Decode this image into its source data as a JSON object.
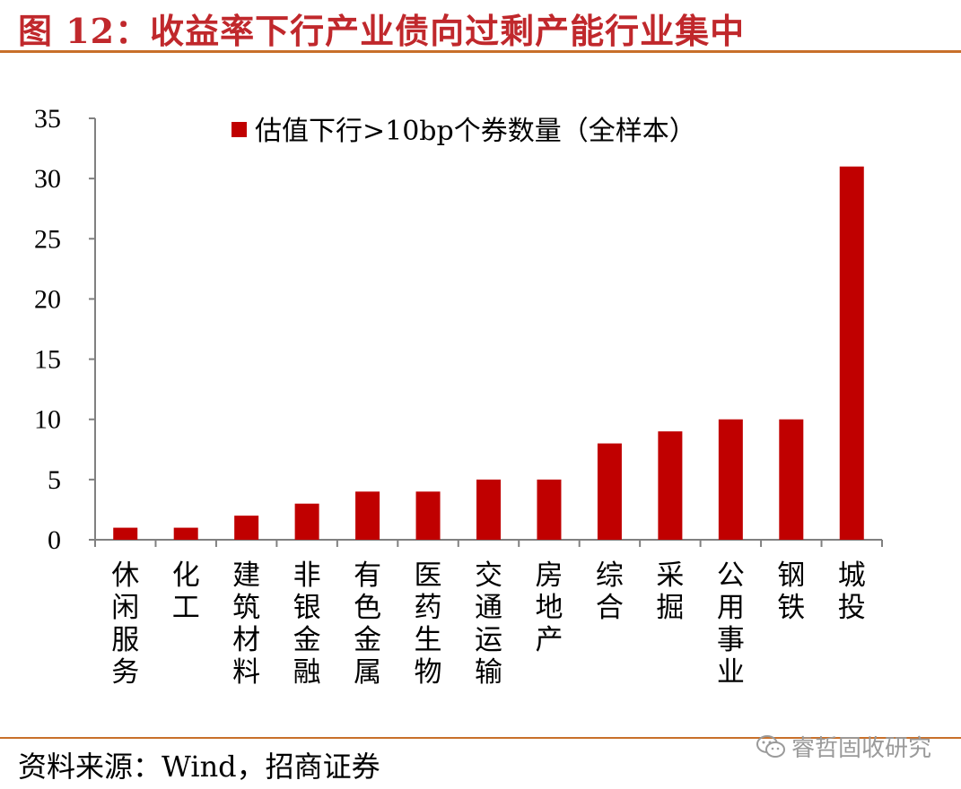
{
  "figure": {
    "title": "图 12：收益率下行产业债向过剩产能行业集中",
    "source": "资料来源：Wind，招商证券",
    "watermark": "睿哲固收研究"
  },
  "chart_data": {
    "type": "bar",
    "categories": [
      "休闲服务",
      "化工",
      "建筑材料",
      "非银金融",
      "有色金属",
      "医药生物",
      "交通运输",
      "房地产",
      "综合",
      "采掘",
      "公用事业",
      "钢铁",
      "城投"
    ],
    "series": [
      {
        "name": "估值下行>10bp个券数量（全样本）",
        "values": [
          1,
          1,
          2,
          3,
          4,
          4,
          5,
          5,
          8,
          9,
          10,
          10,
          31
        ],
        "color": "#c00000"
      }
    ],
    "ylim": [
      0,
      35
    ],
    "yticks": [
      0,
      5,
      10,
      15,
      20,
      25,
      30,
      35
    ],
    "xlabel": "",
    "ylabel": "",
    "grid": false,
    "legend_position": "top-left"
  }
}
